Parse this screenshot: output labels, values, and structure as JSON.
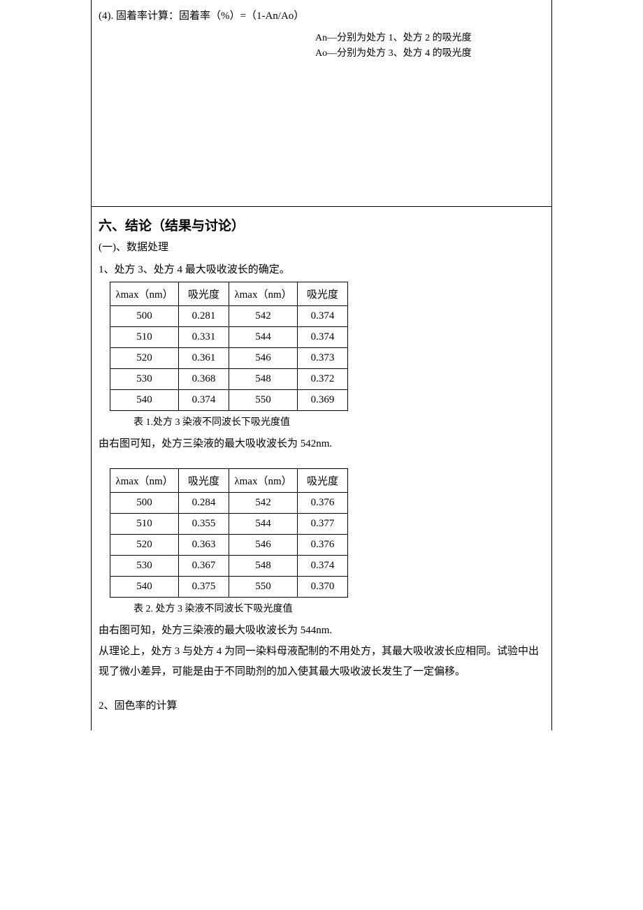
{
  "top": {
    "formula": "(4). 固着率计算：固着率（%）=（1-An/Ao）",
    "note1": "An—分别为处方 1、处方 2 的吸光度",
    "note2": "Ao—分别为处方 3、处方 4 的吸光度"
  },
  "section6": {
    "title": "六、结论（结果与讨论）",
    "sub1": "(一)、数据处理",
    "num1": "1、处方 3、处方 4 最大吸收波长的确定。",
    "table1": {
      "caption": "表 1.处方 3 染液不同波长下吸光度值",
      "headers": [
        "λmax（nm）",
        "吸光度",
        "λmax（nm）",
        "吸光度"
      ],
      "rows": [
        [
          "500",
          "0.281",
          "542",
          "0.374"
        ],
        [
          "510",
          "0.331",
          "544",
          "0.374"
        ],
        [
          "520",
          "0.361",
          "546",
          "0.373"
        ],
        [
          "530",
          "0.368",
          "548",
          "0.372"
        ],
        [
          "540",
          "0.374",
          "550",
          "0.369"
        ]
      ]
    },
    "text1": "由右图可知，处方三染液的最大吸收波长为 542nm.",
    "table2": {
      "caption": "表 2.  处方 3 染液不同波长下吸光度值",
      "headers": [
        "λmax（nm）",
        "吸光度",
        "λmax（nm）",
        "吸光度"
      ],
      "rows": [
        [
          "500",
          "0.284",
          "542",
          "0.376"
        ],
        [
          "510",
          "0.355",
          "544",
          "0.377"
        ],
        [
          "520",
          "0.363",
          "546",
          "0.376"
        ],
        [
          "530",
          "0.367",
          "548",
          "0.374"
        ],
        [
          "540",
          "0.375",
          "550",
          "0.370"
        ]
      ]
    },
    "text2": "由右图可知，处方三染液的最大吸收波长为 544nm.",
    "text3": "从理论上，处方 3 与处方 4 为同一染料母液配制的不用处方，其最大吸收波长应相同。试验中出现了微小差异，可能是由于不同助剂的加入使其最大吸收波长发生了一定偏移。",
    "num2": "2、固色率的计算"
  }
}
